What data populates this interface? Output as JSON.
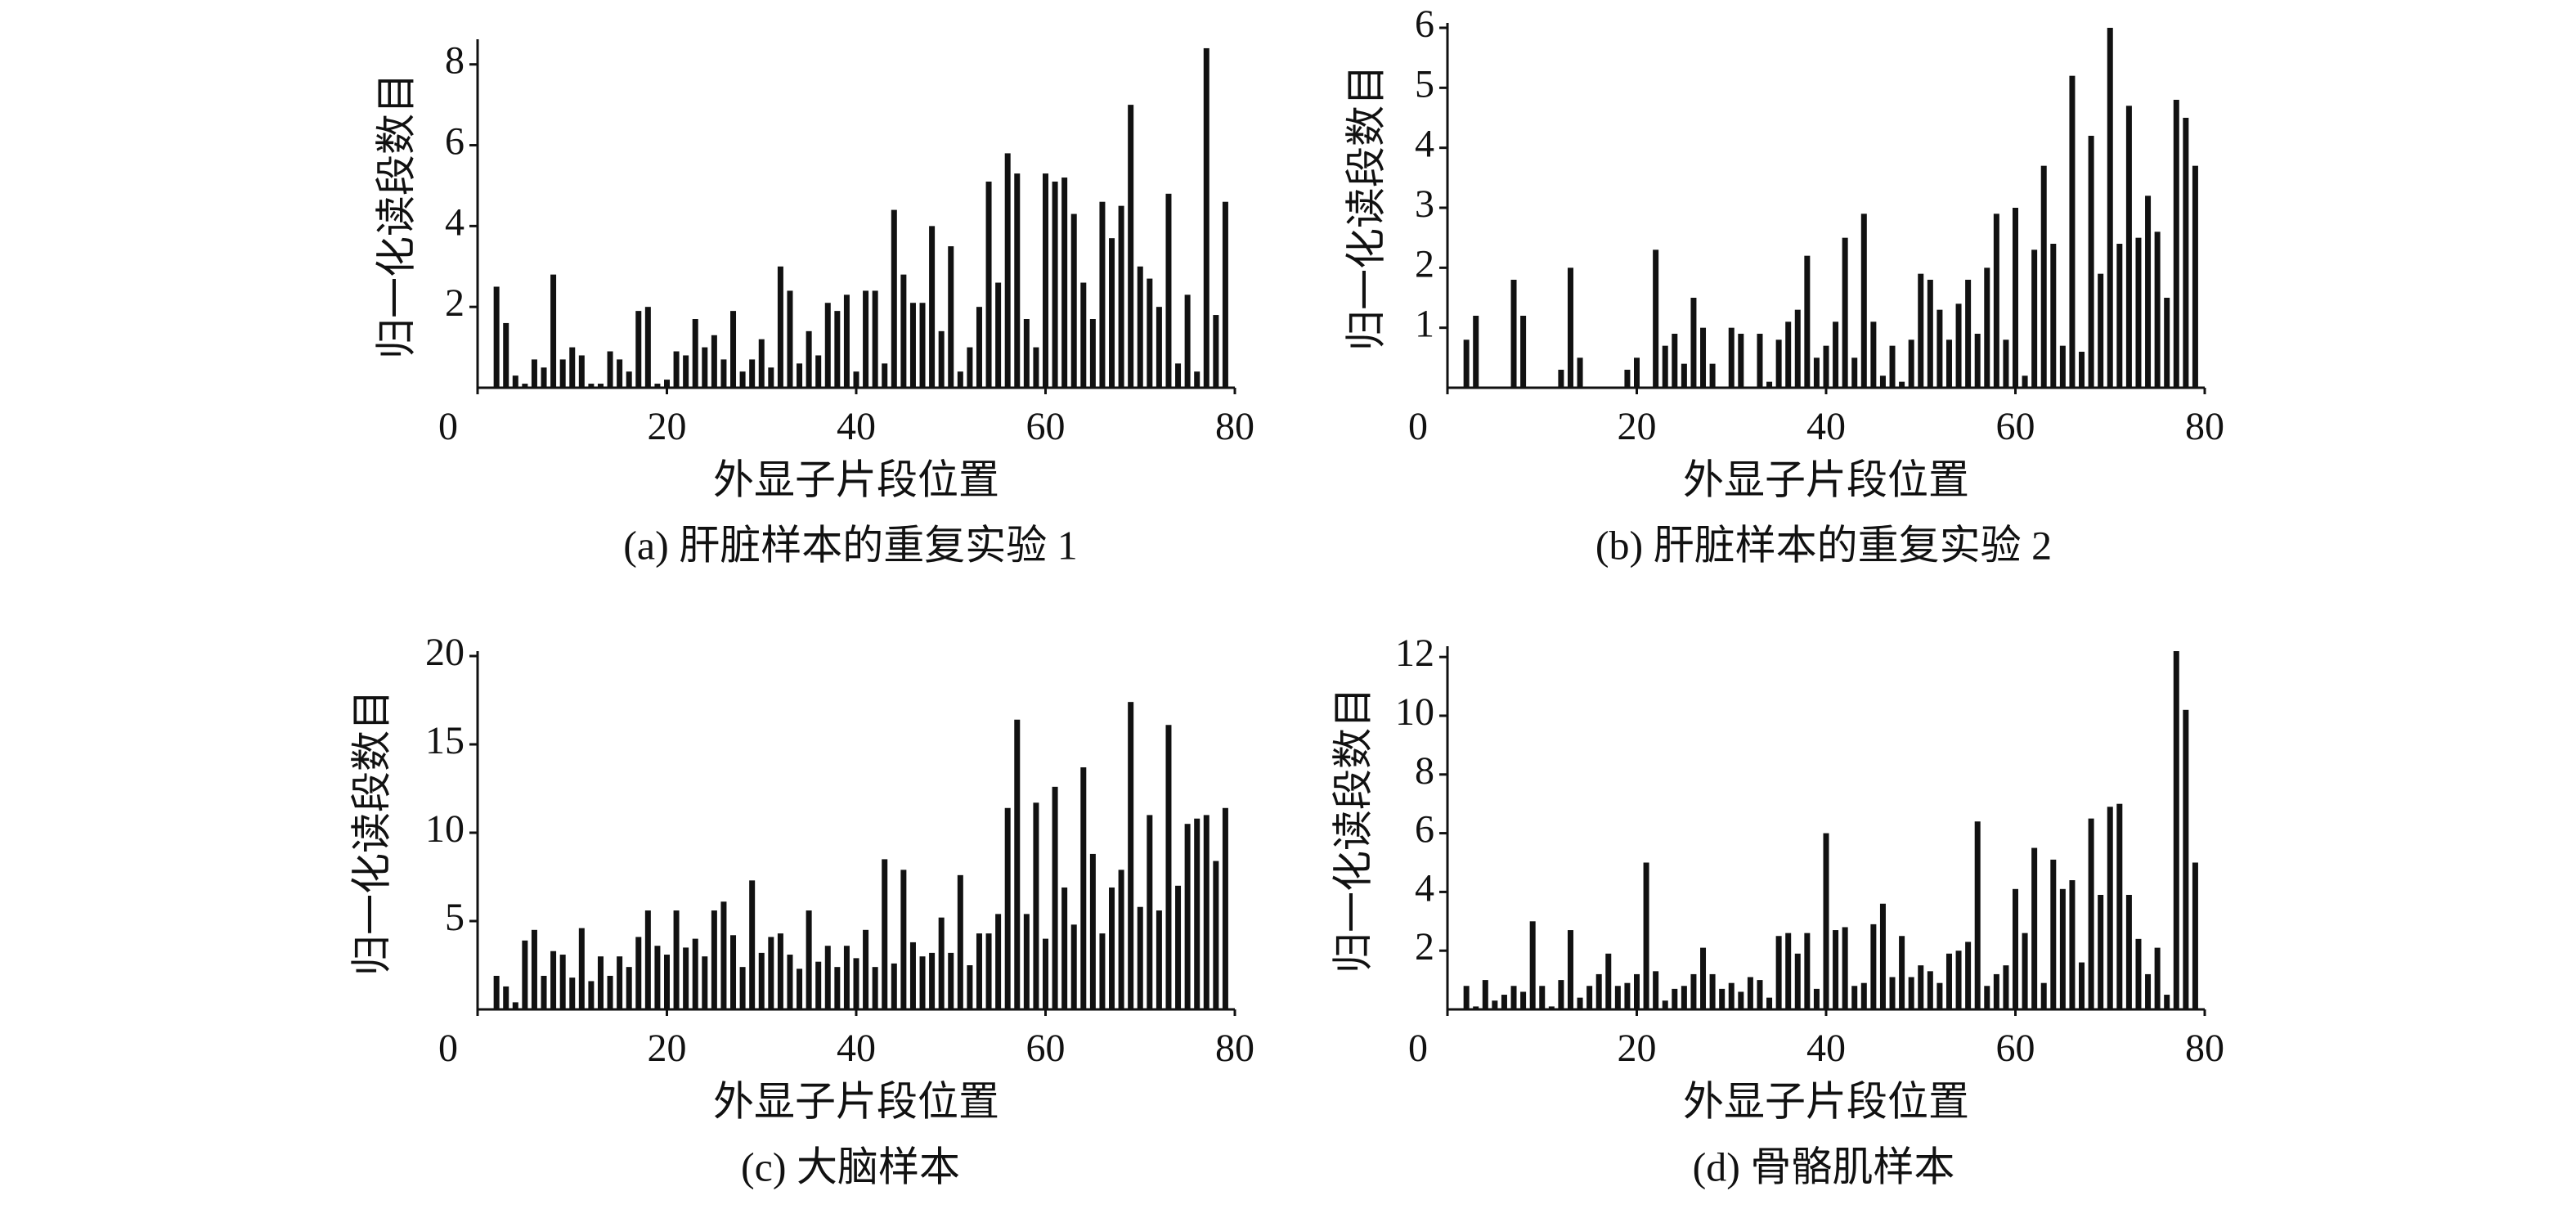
{
  "chart_data": [
    {
      "type": "bar",
      "title": "(a) 肝脏样本的重复实验 1",
      "xlabel": "外显子片段位置",
      "ylabel": "归一化读段数目",
      "color": "#111111",
      "xlim": [
        0,
        80
      ],
      "xticks": [
        0,
        20,
        40,
        60,
        80
      ],
      "ylim": [
        0,
        8.5
      ],
      "yticks": [
        2,
        4,
        6,
        8
      ],
      "x": [
        2,
        3,
        4,
        5,
        6,
        7,
        8,
        9,
        10,
        11,
        12,
        13,
        14,
        15,
        16,
        17,
        18,
        19,
        20,
        21,
        22,
        23,
        24,
        25,
        26,
        27,
        28,
        29,
        30,
        31,
        32,
        33,
        34,
        35,
        36,
        37,
        38,
        39,
        40,
        41,
        42,
        43,
        44,
        45,
        46,
        47,
        48,
        49,
        50,
        51,
        52,
        53,
        54,
        55,
        56,
        57,
        58,
        59,
        60,
        61,
        62,
        63,
        64,
        65,
        66,
        67,
        68,
        69,
        70,
        71,
        72,
        73,
        74,
        75,
        76,
        77,
        78,
        79
      ],
      "values": [
        2.5,
        1.6,
        0.3,
        0.1,
        0.7,
        0.5,
        2.8,
        0.7,
        1.0,
        0.8,
        0.1,
        0.1,
        0.9,
        0.7,
        0.4,
        1.9,
        2.0,
        0.1,
        0.2,
        0.9,
        0.8,
        1.7,
        1.0,
        1.3,
        0.7,
        1.9,
        0.4,
        0.7,
        1.2,
        0.5,
        3.0,
        2.4,
        0.6,
        1.4,
        0.8,
        2.1,
        1.9,
        2.3,
        0.4,
        2.4,
        2.4,
        0.6,
        4.4,
        2.8,
        2.1,
        2.1,
        4.0,
        1.4,
        3.5,
        0.4,
        1.0,
        2.0,
        5.1,
        2.6,
        5.8,
        5.3,
        1.7,
        1.0,
        5.3,
        5.1,
        5.2,
        4.3,
        2.6,
        1.7,
        4.6,
        3.7,
        4.5,
        7.0,
        3.0,
        2.7,
        2.0,
        4.8,
        0.6,
        2.3,
        0.4,
        8.4,
        1.8,
        4.6
      ]
    },
    {
      "type": "bar",
      "title": "(b) 肝脏样本的重复实验 2",
      "xlabel": "外显子片段位置",
      "ylabel": "归一化读段数目",
      "color": "#111111",
      "xlim": [
        0,
        80
      ],
      "xticks": [
        0,
        20,
        40,
        60,
        80
      ],
      "ylim": [
        0,
        6
      ],
      "yticks": [
        1,
        2,
        3,
        4,
        5,
        6
      ],
      "x": [
        2,
        3,
        4,
        5,
        6,
        7,
        8,
        9,
        10,
        11,
        12,
        13,
        14,
        15,
        16,
        17,
        18,
        19,
        20,
        21,
        22,
        23,
        24,
        25,
        26,
        27,
        28,
        29,
        30,
        31,
        32,
        33,
        34,
        35,
        36,
        37,
        38,
        39,
        40,
        41,
        42,
        43,
        44,
        45,
        46,
        47,
        48,
        49,
        50,
        51,
        52,
        53,
        54,
        55,
        56,
        57,
        58,
        59,
        60,
        61,
        62,
        63,
        64,
        65,
        66,
        67,
        68,
        69,
        70,
        71,
        72,
        73,
        74,
        75,
        76,
        77,
        78,
        79
      ],
      "values": [
        0.8,
        1.2,
        0.0,
        0.0,
        0.0,
        1.8,
        1.2,
        0.0,
        0.0,
        0.0,
        0.3,
        2.0,
        0.5,
        0.0,
        0.0,
        0.0,
        0.0,
        0.3,
        0.5,
        0.0,
        2.3,
        0.7,
        0.9,
        0.4,
        1.5,
        1.0,
        0.4,
        0.0,
        1.0,
        0.9,
        0.0,
        0.9,
        0.1,
        0.8,
        1.1,
        1.3,
        2.2,
        0.5,
        0.7,
        1.1,
        2.5,
        0.5,
        2.9,
        1.1,
        0.2,
        0.7,
        0.1,
        0.8,
        1.9,
        1.8,
        1.3,
        0.8,
        1.4,
        1.8,
        0.9,
        2.0,
        2.9,
        0.8,
        3.0,
        0.2,
        2.3,
        3.7,
        2.4,
        0.7,
        5.2,
        0.6,
        4.2,
        1.9,
        6.0,
        2.4,
        4.7,
        2.5,
        3.2,
        2.6,
        1.5,
        4.8,
        4.5,
        3.7
      ]
    },
    {
      "type": "bar",
      "title": "(c) 大脑样本",
      "xlabel": "外显子片段位置",
      "ylabel": "归一化读段数目",
      "color": "#111111",
      "xlim": [
        0,
        80
      ],
      "xticks": [
        0,
        20,
        40,
        60,
        80
      ],
      "ylim": [
        0,
        20
      ],
      "yticks": [
        5,
        10,
        15,
        20
      ],
      "x": [
        2,
        3,
        4,
        5,
        6,
        7,
        8,
        9,
        10,
        11,
        12,
        13,
        14,
        15,
        16,
        17,
        18,
        19,
        20,
        21,
        22,
        23,
        24,
        25,
        26,
        27,
        28,
        29,
        30,
        31,
        32,
        33,
        34,
        35,
        36,
        37,
        38,
        39,
        40,
        41,
        42,
        43,
        44,
        45,
        46,
        47,
        48,
        49,
        50,
        51,
        52,
        53,
        54,
        55,
        56,
        57,
        58,
        59,
        60,
        61,
        62,
        63,
        64,
        65,
        66,
        67,
        68,
        69,
        70,
        71,
        72,
        73,
        74,
        75,
        76,
        77,
        78,
        79
      ],
      "values": [
        1.9,
        1.3,
        0.4,
        3.9,
        4.5,
        1.9,
        3.3,
        3.1,
        1.8,
        4.6,
        1.6,
        3.0,
        1.9,
        3.0,
        2.4,
        4.1,
        5.6,
        3.6,
        3.1,
        5.6,
        3.5,
        4.0,
        3.0,
        5.6,
        6.1,
        4.2,
        2.4,
        7.3,
        3.2,
        4.1,
        4.3,
        3.1,
        2.3,
        5.6,
        2.7,
        3.6,
        2.4,
        3.6,
        2.9,
        4.5,
        2.4,
        8.5,
        2.6,
        7.9,
        3.8,
        3.0,
        3.2,
        5.2,
        3.2,
        7.6,
        2.5,
        4.3,
        4.3,
        5.4,
        11.4,
        16.4,
        5.4,
        11.7,
        4.0,
        12.6,
        6.9,
        4.8,
        13.7,
        8.8,
        4.3,
        6.9,
        7.9,
        17.4,
        5.8,
        11.0,
        5.6,
        16.1,
        7.0,
        10.5,
        10.8,
        11.0,
        8.4,
        11.4
      ]
    },
    {
      "type": "bar",
      "title": "(d) 骨骼肌样本",
      "xlabel": "外显子片段位置",
      "ylabel": "归一化读段数目",
      "color": "#111111",
      "xlim": [
        0,
        80
      ],
      "xticks": [
        0,
        20,
        40,
        60,
        80
      ],
      "ylim": [
        0,
        12.2
      ],
      "yticks": [
        2,
        4,
        6,
        8,
        10,
        12
      ],
      "x": [
        2,
        3,
        4,
        5,
        6,
        7,
        8,
        9,
        10,
        11,
        12,
        13,
        14,
        15,
        16,
        17,
        18,
        19,
        20,
        21,
        22,
        23,
        24,
        25,
        26,
        27,
        28,
        29,
        30,
        31,
        32,
        33,
        34,
        35,
        36,
        37,
        38,
        39,
        40,
        41,
        42,
        43,
        44,
        45,
        46,
        47,
        48,
        49,
        50,
        51,
        52,
        53,
        54,
        55,
        56,
        57,
        58,
        59,
        60,
        61,
        62,
        63,
        64,
        65,
        66,
        67,
        68,
        69,
        70,
        71,
        72,
        73,
        74,
        75,
        76,
        77,
        78,
        79
      ],
      "values": [
        0.8,
        0.1,
        1.0,
        0.3,
        0.5,
        0.8,
        0.6,
        3.0,
        0.8,
        0.1,
        1.0,
        2.7,
        0.4,
        0.8,
        1.2,
        1.9,
        0.8,
        0.9,
        1.2,
        5.0,
        1.3,
        0.3,
        0.7,
        0.8,
        1.2,
        2.1,
        1.2,
        0.7,
        0.9,
        0.6,
        1.1,
        1.0,
        0.4,
        2.5,
        2.6,
        1.9,
        2.6,
        0.7,
        6.0,
        2.7,
        2.8,
        0.8,
        0.9,
        2.9,
        3.6,
        1.1,
        2.5,
        1.1,
        1.5,
        1.3,
        0.9,
        1.9,
        2.0,
        2.3,
        6.4,
        0.8,
        1.2,
        1.5,
        4.1,
        2.6,
        5.5,
        0.9,
        5.1,
        4.1,
        4.4,
        1.6,
        6.5,
        3.9,
        6.9,
        7.0,
        3.9,
        2.4,
        1.2,
        2.1,
        0.5,
        12.2,
        10.2,
        5.0
      ]
    }
  ]
}
